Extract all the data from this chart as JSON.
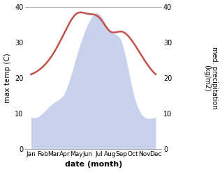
{
  "months": [
    "Jan",
    "Feb",
    "Mar",
    "Apr",
    "May",
    "Jun",
    "Jul",
    "Aug",
    "Sep",
    "Oct",
    "Nov",
    "Dec"
  ],
  "temperature": [
    21,
    23,
    27,
    33,
    38,
    38,
    37,
    33,
    33,
    30,
    25,
    21
  ],
  "precipitation": [
    9,
    10,
    13,
    16,
    26,
    35,
    38,
    33,
    30,
    16,
    9,
    9
  ],
  "temp_color": "#c0524a",
  "precip_fill_color": "#b8c4e8",
  "ylim": [
    0,
    40
  ],
  "xlabel": "date (month)",
  "ylabel_left": "max temp (C)",
  "ylabel_right": "med. precipitation\n(kg/m2)",
  "background_color": "#ffffff",
  "spine_color": "#aaaaaa",
  "figsize": [
    3.18,
    2.47
  ],
  "dpi": 100
}
